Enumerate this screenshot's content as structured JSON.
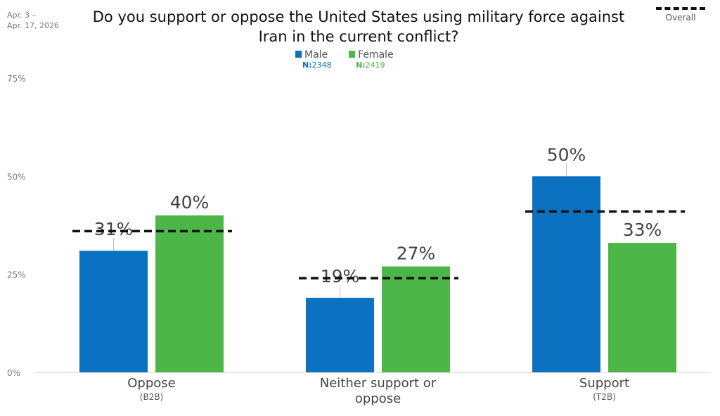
{
  "date_range": [
    "Apr. 3 –",
    "Apr. 17, 2026"
  ],
  "overall_legend_label": "Overall",
  "chart_data": {
    "type": "bar",
    "title": "Do you support or oppose the United States using military force against Iran in the current conflict?",
    "categories": [
      {
        "label": "Oppose",
        "sublabel": "(B2B)"
      },
      {
        "label": "Neither support or oppose",
        "label_lines": [
          "Neither support or",
          "oppose"
        ],
        "sublabel": ""
      },
      {
        "label": "Support",
        "sublabel": "(T2B)"
      }
    ],
    "series": [
      {
        "name": "Male",
        "n_label": "N:",
        "n": "2348",
        "color": "#0a72c0",
        "values": [
          31,
          19,
          50
        ],
        "labels": [
          "31%",
          "19%",
          "50%"
        ]
      },
      {
        "name": "Female",
        "n_label": "N:",
        "n": "2419",
        "color": "#4cb748",
        "values": [
          40,
          27,
          33
        ],
        "labels": [
          "40%",
          "27%",
          "33%"
        ]
      }
    ],
    "overall": [
      36,
      24,
      41
    ],
    "y_ticks": [
      {
        "v": 0,
        "label": "0%"
      },
      {
        "v": 25,
        "label": "25%"
      },
      {
        "v": 50,
        "label": "50%"
      },
      {
        "v": 75,
        "label": "75%"
      }
    ],
    "ylim": [
      0,
      75
    ],
    "legend": "top-center"
  }
}
